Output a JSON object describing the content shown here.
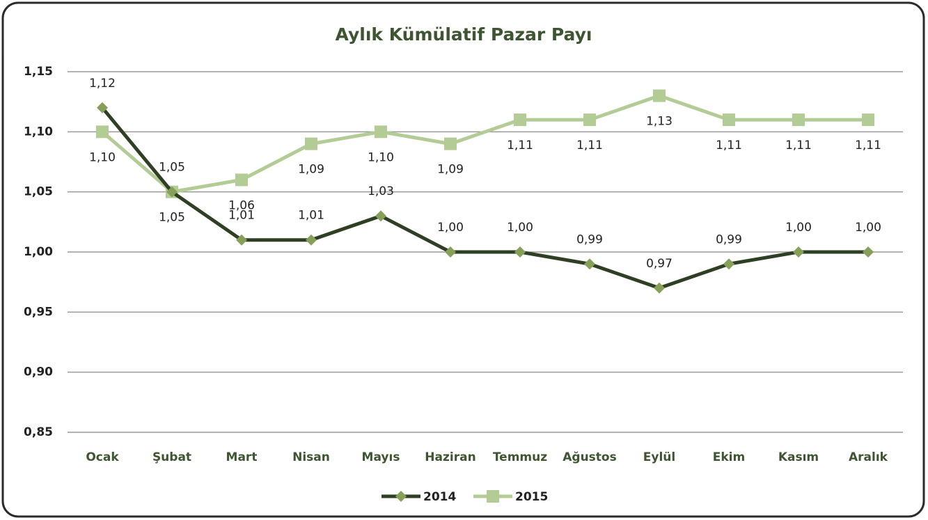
{
  "chart_data": {
    "type": "line",
    "title": "Aylık Kümülatif Pazar Payı",
    "categories": [
      "Ocak",
      "Şubat",
      "Mart",
      "Nisan",
      "Mayıs",
      "Haziran",
      "Temmuz",
      "Ağustos",
      "Eylül",
      "Ekim",
      "Kasım",
      "Aralık"
    ],
    "series": [
      {
        "name": "2014",
        "color": "#2e3f24",
        "marker_color": "#86a05a",
        "marker": "diamond",
        "values": [
          1.12,
          1.05,
          1.01,
          1.01,
          1.03,
          1.0,
          1.0,
          0.99,
          0.97,
          0.99,
          1.0,
          1.0
        ],
        "value_labels": [
          "1,12",
          "1,05",
          "1,01",
          "1,01",
          "1,03",
          "1,00",
          "1,00",
          "0,99",
          "0,97",
          "0,99",
          "1,00",
          "1,00"
        ]
      },
      {
        "name": "2015",
        "color": "#b3cc96",
        "marker_color": "#b3cc96",
        "marker": "square",
        "values": [
          1.1,
          1.05,
          1.06,
          1.09,
          1.1,
          1.09,
          1.11,
          1.11,
          1.13,
          1.11,
          1.11,
          1.11
        ],
        "value_labels": [
          "1,10",
          "1,05",
          "1,06",
          "1,09",
          "1,10",
          "1,09",
          "1,11",
          "1,11",
          "1,13",
          "1,11",
          "1,11",
          "1,11"
        ]
      }
    ],
    "ylim": [
      0.85,
      1.15
    ],
    "yticks": [
      {
        "value": 0.85,
        "label": "0,85"
      },
      {
        "value": 0.9,
        "label": "0,90"
      },
      {
        "value": 0.95,
        "label": "0,95"
      },
      {
        "value": 1.0,
        "label": "1,00"
      },
      {
        "value": 1.05,
        "label": "1,05"
      },
      {
        "value": 1.1,
        "label": "1,10"
      },
      {
        "value": 1.15,
        "label": "1,15"
      }
    ],
    "grid": true,
    "legend": "bottom"
  }
}
